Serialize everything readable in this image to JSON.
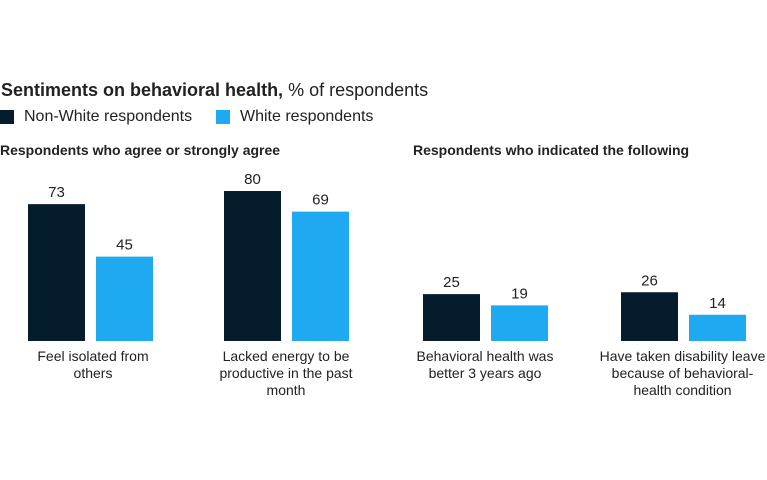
{
  "title_bold": "Sentiments on behavioral health,",
  "title_rest": " % of respondents",
  "legend": [
    {
      "label": "Non-White respondents",
      "color": "#051c2c"
    },
    {
      "label": "White respondents",
      "color": "#1fa9f0"
    }
  ],
  "chart_data": [
    {
      "type": "bar",
      "title": "Respondents who agree or strongly agree",
      "categories": [
        "Feel isolated from others",
        "Lacked energy to be productive in the past month"
      ],
      "series": [
        {
          "name": "Non-White respondents",
          "values": [
            73,
            80
          ]
        },
        {
          "name": "White respondents",
          "values": [
            45,
            69
          ]
        }
      ],
      "ylim": [
        0,
        80
      ]
    },
    {
      "type": "bar",
      "title": "Respondents who indicated the following",
      "categories": [
        "Behavioral health was better 3 years ago",
        "Have taken disability leave because of behavioral-health condition"
      ],
      "series": [
        {
          "name": "Non-White respondents",
          "values": [
            25,
            26
          ]
        },
        {
          "name": "White respondents",
          "values": [
            19,
            14
          ]
        }
      ],
      "ylim": [
        0,
        80
      ]
    }
  ]
}
